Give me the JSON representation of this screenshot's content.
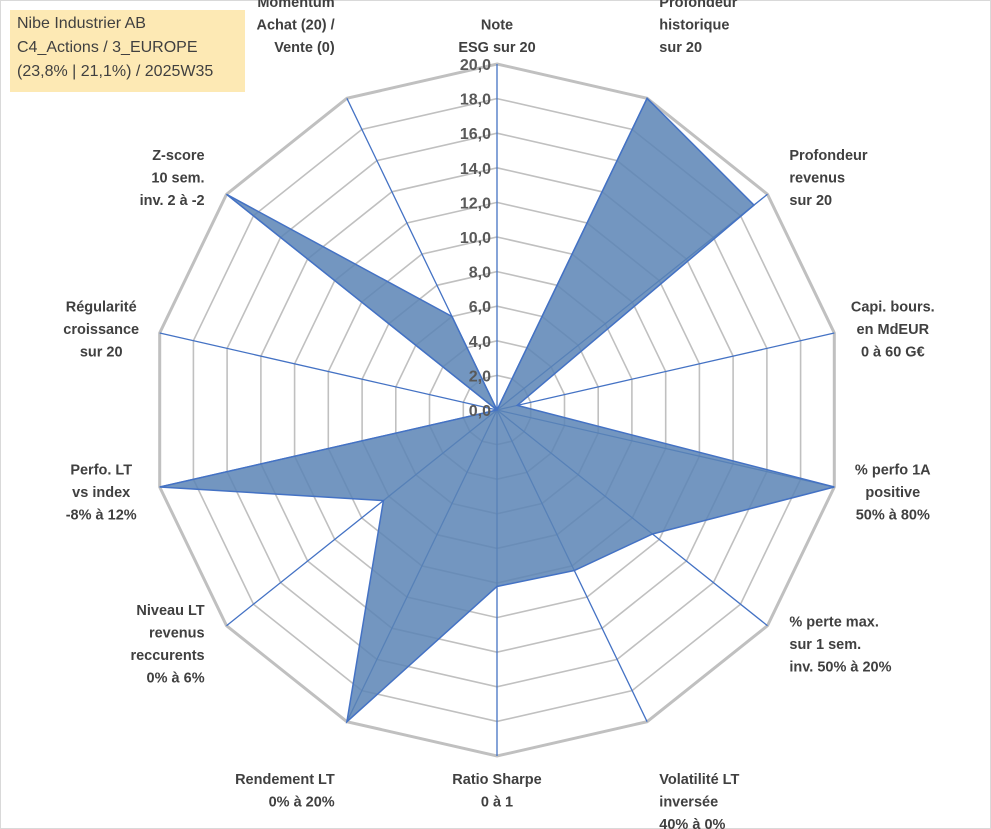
{
  "info_box": {
    "line1": "Nibe Industrier AB",
    "line2": "C4_Actions / 3_EUROPE",
    "line3": "(23,8% | 21,1%) / 2025W35"
  },
  "colors": {
    "fill": "#5b84b5",
    "axis": "#4472c4",
    "grid": "#c0c0c0",
    "label": "#404040",
    "info_bg": "#fde9b4"
  },
  "chart_data": {
    "type": "radar",
    "rmin": 0,
    "rmax": 20,
    "ticks": [
      "0,0",
      "2,0",
      "4,0",
      "6,0",
      "8,0",
      "10,0",
      "12,0",
      "14,0",
      "16,0",
      "18,0",
      "20,0"
    ],
    "axes": [
      [
        "Note",
        "ESG sur 20"
      ],
      [
        "Profondeur",
        "historique",
        "sur 20"
      ],
      [
        "Profondeur",
        "revenus",
        "sur 20"
      ],
      [
        "Capi. bours.",
        "en MdEUR",
        "0 à 60 G€"
      ],
      [
        "% perfo 1A",
        "positive",
        "50% à 80%"
      ],
      [
        "% perte max.",
        "sur 1 sem.",
        "inv. 50% à 20%"
      ],
      [
        "Volatilité LT",
        "inversée",
        "40% à 0%"
      ],
      [
        "Ratio Sharpe",
        "0 à 1"
      ],
      [
        "Rendement LT",
        "0% à 20%"
      ],
      [
        "Niveau LT",
        "revenus",
        "reccurents",
        "0% à 6%"
      ],
      [
        "Perfo. LT",
        "vs index",
        "-8% à 12%"
      ],
      [
        "Régularité",
        "croissance",
        "sur 20"
      ],
      [
        "Z-score",
        "10 sem.",
        "inv. 2 à -2"
      ],
      [
        "Momentum",
        "Achat (20) /",
        "Vente (0)"
      ]
    ],
    "series": [
      {
        "values": [
          0,
          20,
          19,
          1.2,
          20,
          11.5,
          10.3,
          10.2,
          20,
          8.4,
          20,
          0,
          20,
          6
        ]
      }
    ]
  }
}
